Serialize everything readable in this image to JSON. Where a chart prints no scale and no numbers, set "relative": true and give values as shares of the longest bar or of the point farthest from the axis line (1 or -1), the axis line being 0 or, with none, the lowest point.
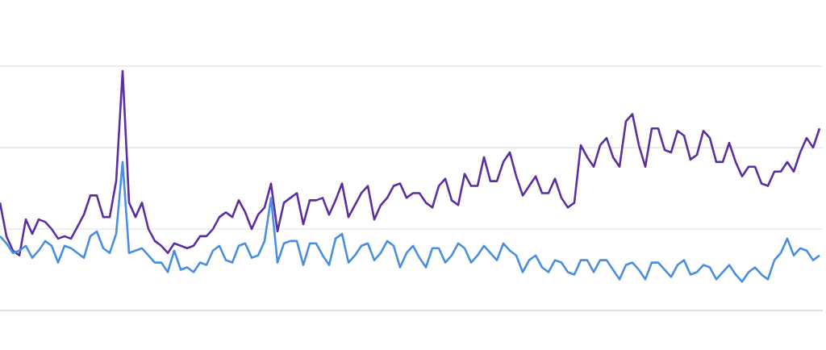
{
  "chart_data": {
    "type": "line",
    "relative": true,
    "ref_lines": [
      {
        "axis": "y",
        "value": 0.34,
        "color": "#e0e0e0"
      },
      {
        "axis": "y",
        "value": 0.68,
        "color": "#e0e0e0"
      },
      {
        "axis": "y",
        "value": 1.02,
        "color": "#e0e0e0"
      }
    ],
    "line_style": "solid",
    "marker": "none",
    "categories": [
      null,
      null,
      null,
      null,
      null,
      null,
      null,
      null,
      null,
      null,
      null,
      null,
      null,
      null,
      null,
      null,
      null,
      null,
      null,
      null,
      null,
      null,
      null,
      null,
      null,
      null,
      null,
      null,
      null,
      null,
      null,
      null,
      null,
      null,
      null,
      null,
      null,
      null,
      null,
      null,
      null,
      null,
      null,
      null,
      null,
      null,
      null,
      null,
      null,
      null,
      null,
      null,
      null,
      null,
      null,
      null,
      null,
      null,
      null,
      null,
      null,
      null,
      null,
      null,
      null,
      null,
      null,
      null,
      null,
      null,
      null,
      null,
      null,
      null,
      null,
      null,
      null,
      null,
      null,
      null,
      null,
      null,
      null,
      null,
      null,
      null,
      null,
      null,
      null,
      null,
      null,
      null,
      null,
      null,
      null,
      null,
      null,
      null,
      null,
      null,
      null,
      null,
      null,
      null,
      null,
      null,
      null,
      null,
      null,
      null,
      null,
      null,
      null,
      null,
      null,
      null,
      null,
      null,
      null,
      null,
      null,
      null,
      null,
      null,
      null,
      null,
      null,
      null
    ],
    "series": [
      {
        "color": "#5b2fa0",
        "values": [
          0.45,
          0.31,
          0.25,
          0.23,
          0.38,
          0.32,
          0.38,
          0.37,
          0.34,
          0.3,
          0.31,
          0.3,
          0.35,
          0.4,
          0.48,
          0.48,
          0.39,
          0.39,
          0.54,
          1.0,
          0.45,
          0.39,
          0.45,
          0.34,
          0.29,
          0.27,
          0.24,
          0.28,
          0.27,
          0.26,
          0.27,
          0.31,
          0.31,
          0.34,
          0.39,
          0.41,
          0.39,
          0.46,
          0.41,
          0.34,
          0.4,
          0.43,
          0.53,
          0.33,
          0.45,
          0.47,
          0.49,
          0.36,
          0.46,
          0.46,
          0.47,
          0.4,
          0.46,
          0.53,
          0.39,
          0.44,
          0.49,
          0.52,
          0.38,
          0.44,
          0.47,
          0.52,
          0.53,
          0.47,
          0.49,
          0.49,
          0.45,
          0.43,
          0.52,
          0.55,
          0.46,
          0.44,
          0.57,
          0.52,
          0.52,
          0.64,
          0.54,
          0.54,
          0.62,
          0.66,
          0.56,
          0.48,
          0.52,
          0.56,
          0.49,
          0.49,
          0.55,
          0.47,
          0.43,
          0.45,
          0.69,
          0.64,
          0.6,
          0.69,
          0.72,
          0.64,
          0.6,
          0.79,
          0.82,
          0.69,
          0.6,
          0.76,
          0.76,
          0.67,
          0.66,
          0.75,
          0.73,
          0.63,
          0.65,
          0.75,
          0.72,
          0.62,
          0.62,
          0.7,
          0.62,
          0.56,
          0.6,
          0.6,
          0.53,
          0.52,
          0.58,
          0.58,
          0.62,
          0.58,
          0.66,
          0.72,
          0.68,
          0.76
        ]
      },
      {
        "color": "#4a8fdf",
        "values": [
          0.31,
          0.28,
          0.24,
          0.25,
          0.27,
          0.22,
          0.25,
          0.29,
          0.27,
          0.2,
          0.27,
          0.26,
          0.24,
          0.22,
          0.31,
          0.33,
          0.26,
          0.24,
          0.32,
          0.62,
          0.24,
          0.25,
          0.26,
          0.23,
          0.2,
          0.2,
          0.16,
          0.25,
          0.17,
          0.18,
          0.16,
          0.2,
          0.19,
          0.25,
          0.27,
          0.21,
          0.2,
          0.27,
          0.28,
          0.22,
          0.23,
          0.29,
          0.47,
          0.2,
          0.28,
          0.29,
          0.29,
          0.19,
          0.28,
          0.28,
          0.23,
          0.19,
          0.3,
          0.32,
          0.2,
          0.23,
          0.27,
          0.28,
          0.21,
          0.24,
          0.29,
          0.27,
          0.18,
          0.24,
          0.27,
          0.22,
          0.18,
          0.26,
          0.26,
          0.2,
          0.23,
          0.28,
          0.26,
          0.2,
          0.23,
          0.27,
          0.24,
          0.21,
          0.28,
          0.25,
          0.23,
          0.16,
          0.21,
          0.23,
          0.18,
          0.16,
          0.21,
          0.2,
          0.16,
          0.15,
          0.21,
          0.21,
          0.16,
          0.21,
          0.21,
          0.17,
          0.13,
          0.19,
          0.2,
          0.17,
          0.13,
          0.2,
          0.2,
          0.17,
          0.14,
          0.19,
          0.21,
          0.15,
          0.16,
          0.19,
          0.18,
          0.13,
          0.16,
          0.19,
          0.15,
          0.12,
          0.16,
          0.18,
          0.15,
          0.13,
          0.21,
          0.24,
          0.3,
          0.23,
          0.26,
          0.25,
          0.21,
          0.23
        ]
      }
    ]
  }
}
